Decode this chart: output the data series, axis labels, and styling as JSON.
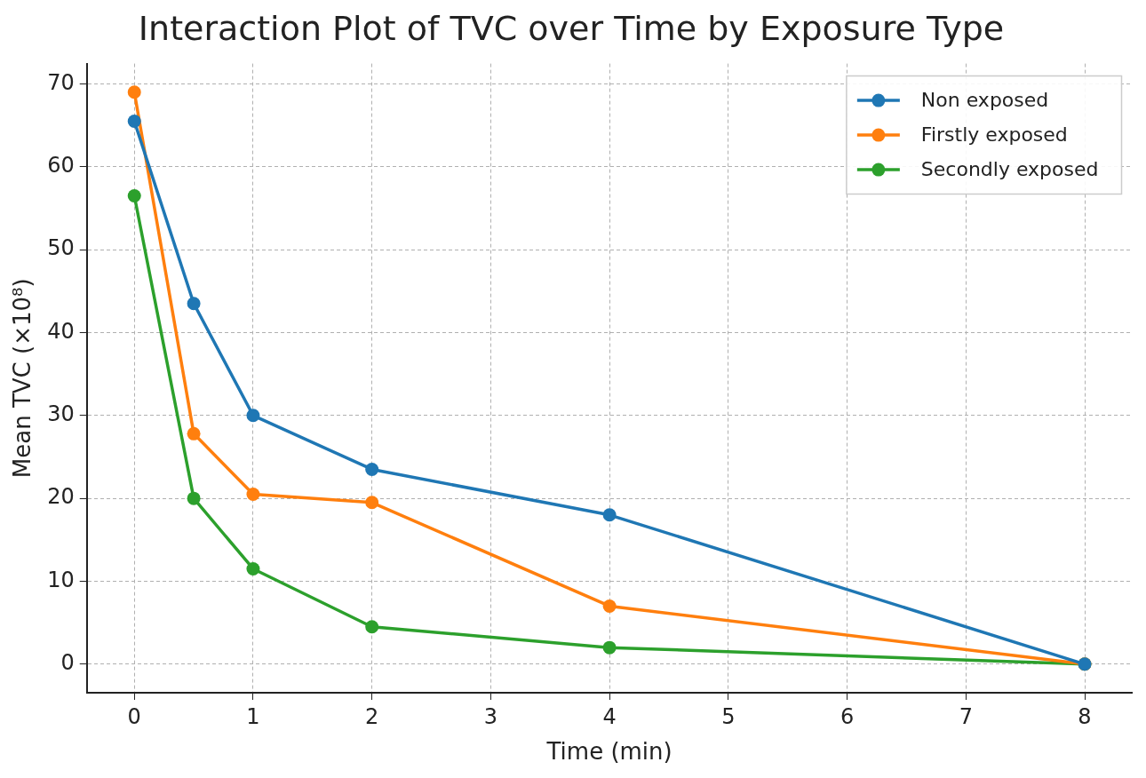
{
  "chart_data": {
    "type": "line",
    "title": "Interaction Plot of TVC over Time by Exposure Type",
    "xlabel": "Time (min)",
    "ylabel": "Mean TVC (×10⁸)",
    "x": [
      0,
      0.5,
      1,
      2,
      4,
      8
    ],
    "series": [
      {
        "name": "Non exposed",
        "color": "#1f77b4",
        "values": [
          65.5,
          43.5,
          30,
          23.5,
          18,
          0
        ]
      },
      {
        "name": "Firstly exposed",
        "color": "#ff7f0e",
        "values": [
          69,
          27.8,
          20.5,
          19.5,
          7,
          0
        ]
      },
      {
        "name": "Secondly exposed",
        "color": "#2ca02c",
        "values": [
          56.5,
          20,
          11.5,
          4.5,
          2,
          0
        ]
      }
    ],
    "xlim": [
      -0.4,
      8.4
    ],
    "xticks": [
      0,
      1,
      2,
      3,
      4,
      5,
      6,
      7,
      8
    ],
    "ylim": [
      -3.45,
      72.45
    ],
    "yticks": [
      0,
      10,
      20,
      30,
      40,
      50,
      60,
      70
    ],
    "grid": true,
    "legend": "top right",
    "marker": "circle",
    "line_style": "solid"
  }
}
